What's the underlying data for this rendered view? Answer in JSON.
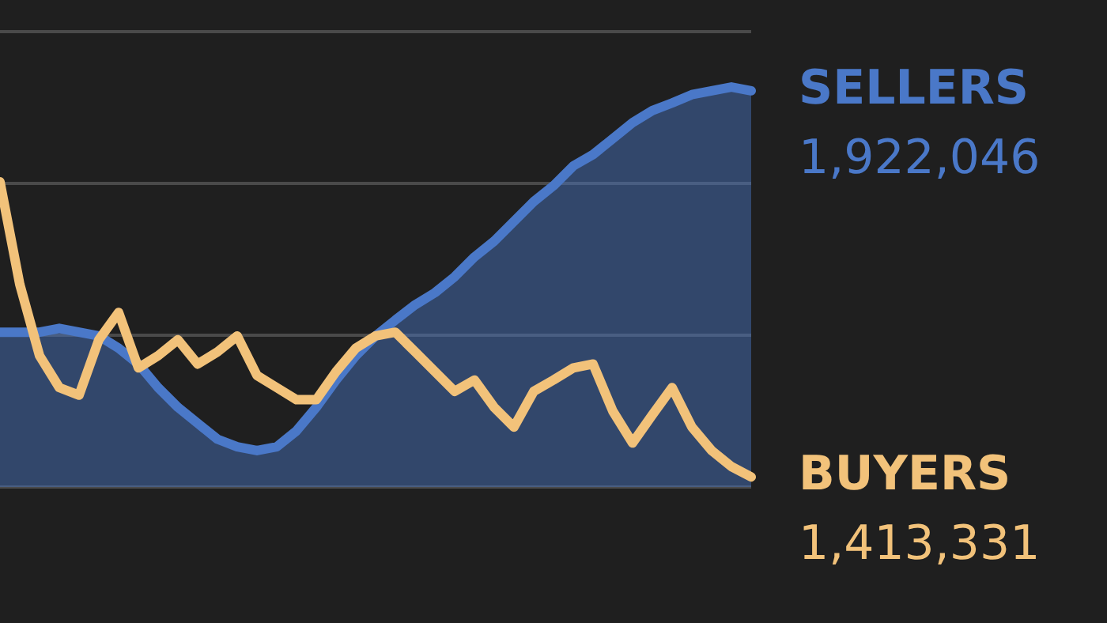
{
  "chart_data": {
    "type": "line",
    "grid": "y",
    "tick_labels": false,
    "ylim": [
      1400000,
      2000000
    ],
    "yticks": [
      {
        "value": 1400000,
        "label": null
      },
      {
        "value": 1600000,
        "label": null
      },
      {
        "value": 1800000,
        "label": null
      },
      {
        "value": 2000000,
        "label": null
      }
    ],
    "categories": [
      null,
      null,
      null,
      null,
      null,
      null,
      null,
      null,
      null,
      null,
      null,
      null,
      null,
      null,
      null,
      null,
      null,
      null,
      null,
      null,
      null,
      null,
      null,
      null,
      null,
      null,
      null,
      null,
      null,
      null,
      null,
      null,
      null,
      null,
      null,
      null,
      null,
      null,
      null
    ],
    "series": [
      {
        "name": "SELLERS",
        "type": "area",
        "color": "#4a78c8",
        "values": [
          1604000,
          1604000,
          1604000,
          1609000,
          1604000,
          1599000,
          1583000,
          1562000,
          1531000,
          1505000,
          1484000,
          1463000,
          1453000,
          1448000,
          1453000,
          1474000,
          1505000,
          1541000,
          1573000,
          1599000,
          1620000,
          1640000,
          1656000,
          1677000,
          1703000,
          1724000,
          1750000,
          1776000,
          1797000,
          1823000,
          1838000,
          1859000,
          1880000,
          1896000,
          1906000,
          1917000,
          1922000,
          1927000,
          1922046
        ],
        "value_labels": [
          null,
          null,
          null,
          null,
          null,
          null,
          null,
          null,
          null,
          null,
          null,
          null,
          null,
          null,
          null,
          null,
          null,
          null,
          null,
          null,
          null,
          null,
          null,
          null,
          null,
          null,
          null,
          null,
          null,
          null,
          null,
          null,
          null,
          null,
          null,
          null,
          null,
          null,
          "1,922,046"
        ]
      },
      {
        "name": "BUYERS",
        "color": "#f2c27a",
        "values": [
          1802000,
          1667000,
          1573000,
          1531000,
          1521000,
          1594000,
          1630000,
          1557000,
          1573000,
          1594000,
          1562000,
          1578000,
          1599000,
          1547000,
          1531000,
          1515000,
          1515000,
          1552000,
          1583000,
          1599000,
          1604000,
          1578000,
          1552000,
          1526000,
          1541000,
          1505000,
          1479000,
          1526000,
          1541000,
          1557000,
          1562000,
          1500000,
          1458000,
          1495000,
          1531000,
          1479000,
          1448000,
          1427000,
          1413331
        ],
        "value_labels": [
          null,
          null,
          null,
          null,
          null,
          null,
          null,
          null,
          null,
          null,
          null,
          null,
          null,
          null,
          null,
          null,
          null,
          null,
          null,
          null,
          null,
          null,
          null,
          null,
          null,
          null,
          null,
          null,
          null,
          null,
          null,
          null,
          null,
          null,
          null,
          null,
          null,
          null,
          "1,413,331"
        ]
      }
    ]
  }
}
